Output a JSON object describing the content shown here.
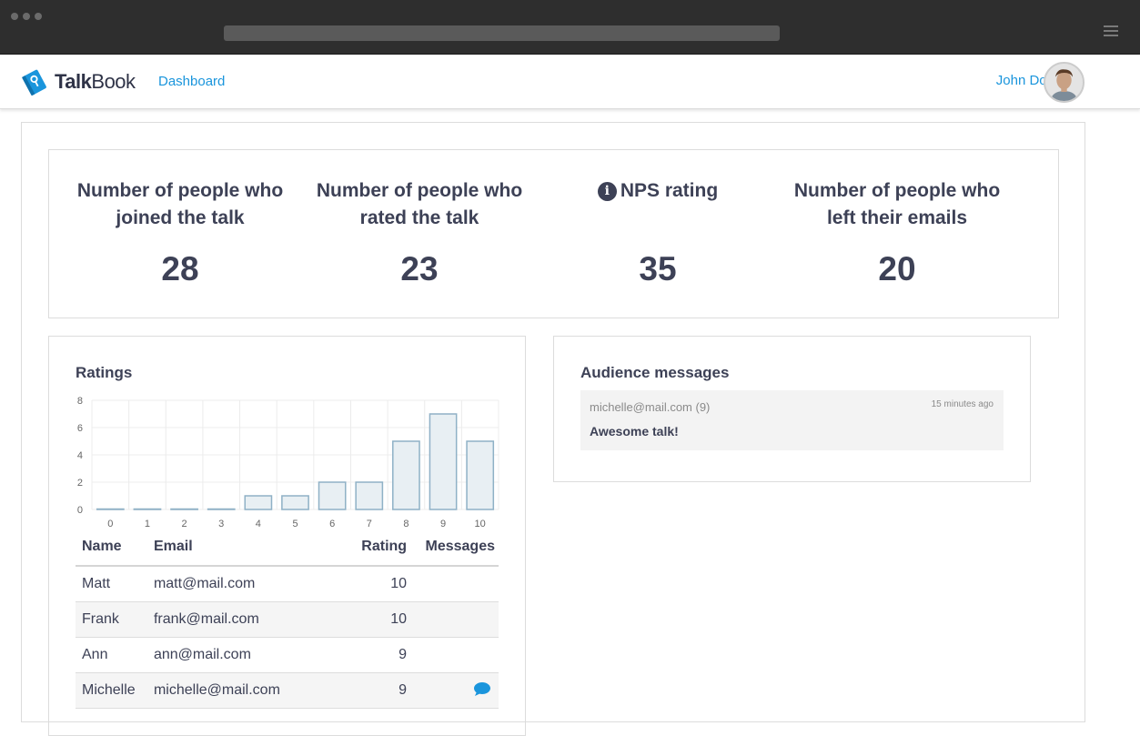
{
  "app": {
    "brand_bold": "Talk",
    "brand_light": "Book",
    "nav_link": "Dashboard",
    "user_name": "John Doe"
  },
  "colors": {
    "accent": "#1a95dc",
    "text": "#3d4156",
    "bar_fill": "#e8eff3",
    "bar_stroke": "#8fb1c6"
  },
  "stats": [
    {
      "label": "Number of people who joined the talk",
      "value": "28"
    },
    {
      "label": "Number of people who rated the talk",
      "value": "23"
    },
    {
      "label": "NPS rating",
      "value": "35",
      "icon": "info-icon"
    },
    {
      "label": "Number of people who left their emails",
      "value": "20"
    }
  ],
  "ratings": {
    "title": "Ratings",
    "chart_data": {
      "type": "bar",
      "categories": [
        "0",
        "1",
        "2",
        "3",
        "4",
        "5",
        "6",
        "7",
        "8",
        "9",
        "10"
      ],
      "values": [
        0,
        0,
        0,
        0,
        1,
        1,
        2,
        2,
        5,
        7,
        5
      ],
      "title": "",
      "xlabel": "",
      "ylabel": "",
      "ylim": [
        0,
        8
      ],
      "yticks": [
        "0",
        "2",
        "4",
        "6",
        "8"
      ],
      "grid": true
    },
    "table": {
      "headers": {
        "name": "Name",
        "email": "Email",
        "rating": "Rating",
        "messages": "Messages"
      },
      "rows": [
        {
          "name": "Matt",
          "email": "matt@mail.com",
          "rating": "10",
          "has_message": false
        },
        {
          "name": "Frank",
          "email": "frank@mail.com",
          "rating": "10",
          "has_message": false
        },
        {
          "name": "Ann",
          "email": "ann@mail.com",
          "rating": "9",
          "has_message": false
        },
        {
          "name": "Michelle",
          "email": "michelle@mail.com",
          "rating": "9",
          "has_message": true
        }
      ]
    }
  },
  "messages": {
    "title": "Audience messages",
    "items": [
      {
        "from": "michelle@mail.com (9)",
        "time": "15 minutes ago",
        "text": "Awesome talk!"
      }
    ]
  }
}
